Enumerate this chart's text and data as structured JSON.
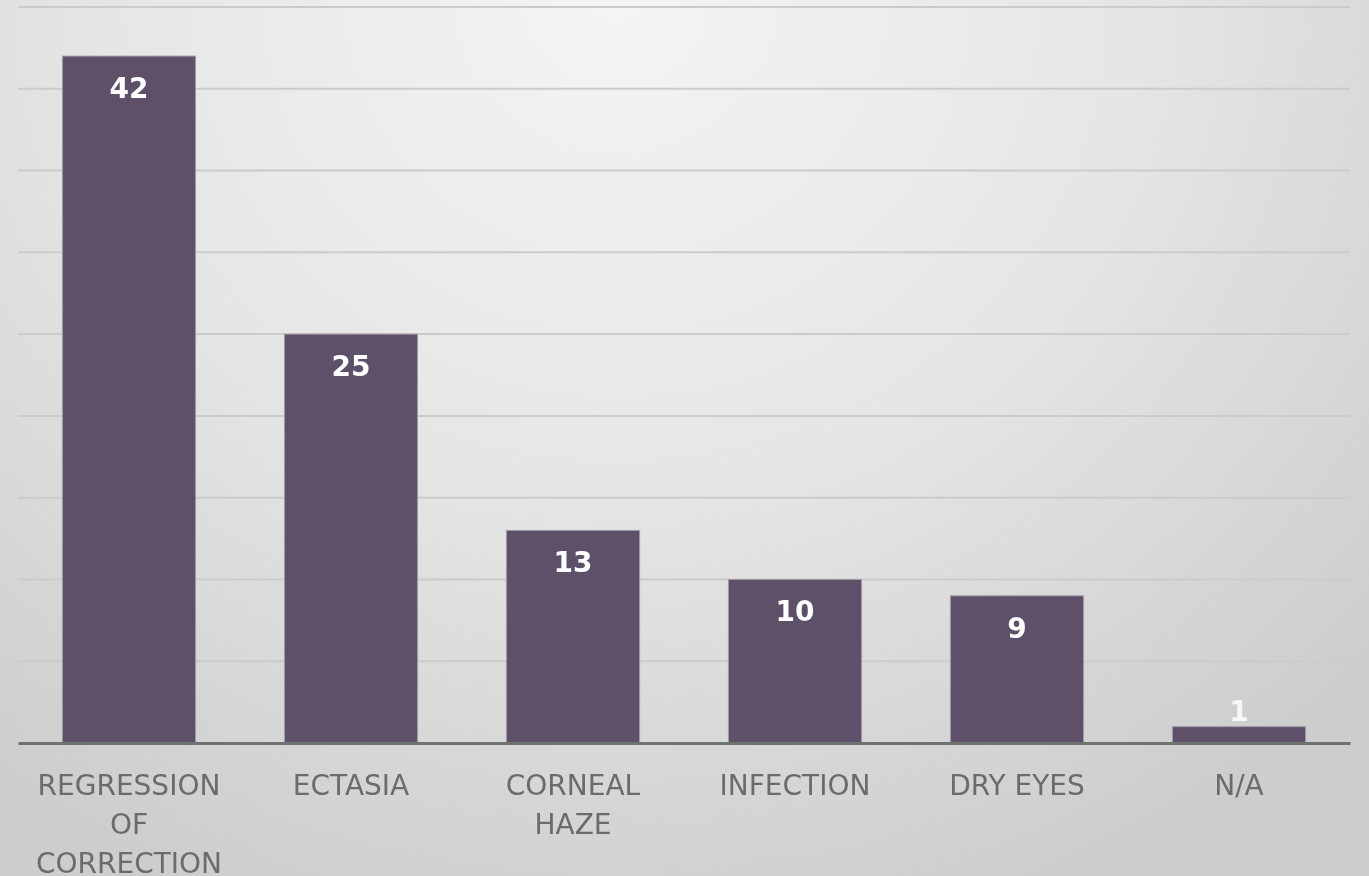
{
  "chart_data": {
    "type": "bar",
    "categories": [
      "REGRESSION OF CORRECTION",
      "ECTASIA",
      "CORNEAL HAZE",
      "INFECTION",
      "DRY EYES",
      "N/A"
    ],
    "values": [
      42,
      25,
      13,
      10,
      9,
      1
    ],
    "color": "#5f5069",
    "ylim": [
      0,
      45
    ],
    "yticks": [
      {
        "value": 0,
        "label": null
      },
      {
        "value": 5,
        "label": null
      },
      {
        "value": 10,
        "label": null
      },
      {
        "value": 15,
        "label": null
      },
      {
        "value": 20,
        "label": null
      },
      {
        "value": 25,
        "label": null
      },
      {
        "value": 30,
        "label": null
      },
      {
        "value": 35,
        "label": null
      },
      {
        "value": 40,
        "label": null
      },
      {
        "value": 45,
        "label": null
      }
    ],
    "grid": "y",
    "tick_labels": "x",
    "data_labels": true
  }
}
